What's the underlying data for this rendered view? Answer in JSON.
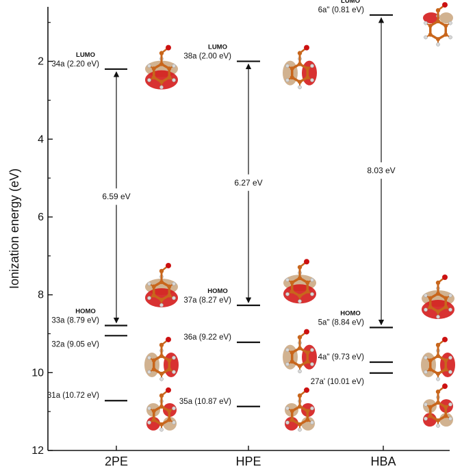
{
  "chart_data": {
    "type": "energy-level diagram",
    "ylabel": "Ionization energy (eV)",
    "ylim": [
      12,
      0.6
    ],
    "y_ticks": [
      "2",
      "4",
      "6",
      "8",
      "10",
      "12"
    ],
    "categories": [
      "2PE",
      "HPE",
      "HBA"
    ],
    "levels": [
      {
        "category": "2PE",
        "orbital": "34a",
        "label": "34a (2.20 eV)",
        "energy": 2.2,
        "tag": "LUMO"
      },
      {
        "category": "2PE",
        "orbital": "33a",
        "label": "33a (8.79 eV)",
        "energy": 8.79,
        "tag": "HOMO"
      },
      {
        "category": "2PE",
        "orbital": "32a",
        "label": "32a (9.05 eV)",
        "energy": 9.05,
        "tag": ""
      },
      {
        "category": "2PE",
        "orbital": "31a",
        "label": "31a (10.72 eV)",
        "energy": 10.72,
        "tag": ""
      },
      {
        "category": "HPE",
        "orbital": "38a",
        "label": "38a (2.00 eV)",
        "energy": 2.0,
        "tag": "LUMO"
      },
      {
        "category": "HPE",
        "orbital": "37a",
        "label": "37a (8.27 eV)",
        "energy": 8.27,
        "tag": "HOMO"
      },
      {
        "category": "HPE",
        "orbital": "36a",
        "label": "36a (9.22 eV)",
        "energy": 9.22,
        "tag": ""
      },
      {
        "category": "HPE",
        "orbital": "35a",
        "label": "35a (10.87 eV)",
        "energy": 10.87,
        "tag": ""
      },
      {
        "category": "HBA",
        "orbital": "6a\"",
        "label": "6a\" (0.81 eV)",
        "energy": 0.81,
        "tag": "LUMO"
      },
      {
        "category": "HBA",
        "orbital": "5a\"",
        "label": "5a\" (8.84 eV)",
        "energy": 8.84,
        "tag": "HOMO"
      },
      {
        "category": "HBA",
        "orbital": "4a\"",
        "label": "4a\" (9.73 eV)",
        "energy": 9.73,
        "tag": ""
      },
      {
        "category": "HBA",
        "orbital": "27a'",
        "label": "27a' (10.01 eV)",
        "energy": 10.01,
        "tag": ""
      }
    ],
    "gaps": [
      {
        "category": "2PE",
        "label": "6.59 eV",
        "from": 2.2,
        "to": 8.79
      },
      {
        "category": "HPE",
        "label": "6.27 eV",
        "from": 2.0,
        "to": 8.27
      },
      {
        "category": "HBA",
        "label": "8.03 eV",
        "from": 0.81,
        "to": 8.84
      }
    ],
    "colors": {
      "carbon": "#c8661c",
      "hydrogen": "#d8d8d8",
      "oxygen": "#cc1111",
      "lobe_red": "#d41c1c",
      "lobe_tan": "#c9a57c",
      "axis": "#111111"
    }
  }
}
